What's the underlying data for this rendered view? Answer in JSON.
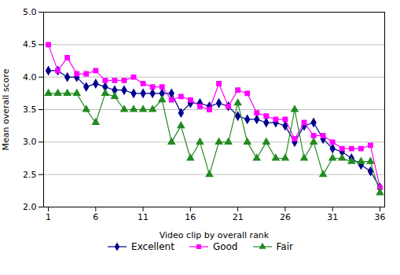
{
  "chart_data": {
    "type": "line",
    "xlabel": "Video clip by overall rank",
    "ylabel": "Mean overall score",
    "x": [
      1,
      2,
      3,
      4,
      5,
      6,
      7,
      8,
      9,
      10,
      11,
      12,
      13,
      14,
      15,
      16,
      17,
      18,
      19,
      20,
      21,
      22,
      23,
      24,
      25,
      26,
      27,
      28,
      29,
      30,
      31,
      32,
      33,
      34,
      35,
      36
    ],
    "series": [
      {
        "name": "Excellent",
        "color": "#00008B",
        "marker": "diamond",
        "values": [
          4.1,
          4.1,
          4.0,
          4.0,
          3.85,
          3.9,
          3.85,
          3.8,
          3.8,
          3.75,
          3.75,
          3.75,
          3.75,
          3.75,
          3.45,
          3.6,
          3.6,
          3.55,
          3.6,
          3.55,
          3.4,
          3.35,
          3.35,
          3.3,
          3.3,
          3.25,
          3.0,
          3.25,
          3.3,
          3.05,
          2.9,
          2.85,
          2.75,
          2.65,
          2.55,
          2.3
        ]
      },
      {
        "name": "Good",
        "color": "#FF00FF",
        "marker": "square",
        "values": [
          4.5,
          4.1,
          4.3,
          4.05,
          4.05,
          4.1,
          3.95,
          3.95,
          3.95,
          4.0,
          3.9,
          3.85,
          3.85,
          3.65,
          3.7,
          3.65,
          3.55,
          3.5,
          3.9,
          3.55,
          3.8,
          3.75,
          3.45,
          3.4,
          3.35,
          3.35,
          3.05,
          3.3,
          3.1,
          3.1,
          3.0,
          2.9,
          2.9,
          2.9,
          2.95,
          2.3
        ]
      },
      {
        "name": "Fair",
        "color": "#228B22",
        "marker": "triangle",
        "values": [
          3.75,
          3.75,
          3.75,
          3.75,
          3.5,
          3.3,
          3.75,
          3.7,
          3.5,
          3.5,
          3.5,
          3.5,
          3.65,
          3.0,
          3.25,
          2.75,
          3.0,
          2.5,
          3.0,
          3.0,
          3.6,
          3.0,
          2.75,
          3.0,
          2.75,
          2.75,
          3.5,
          2.75,
          3.0,
          2.5,
          2.75,
          2.75,
          2.7,
          2.7,
          2.7,
          2.22
        ]
      }
    ],
    "xlim": [
      0.5,
      36.5
    ],
    "xticks": [
      1,
      6,
      11,
      16,
      21,
      26,
      31,
      36
    ],
    "ylim": [
      2.0,
      5.0
    ],
    "yticks": [
      2.0,
      2.5,
      3.0,
      3.5,
      4.0,
      4.5,
      5.0
    ],
    "grid": "y",
    "legend": "bottom"
  }
}
